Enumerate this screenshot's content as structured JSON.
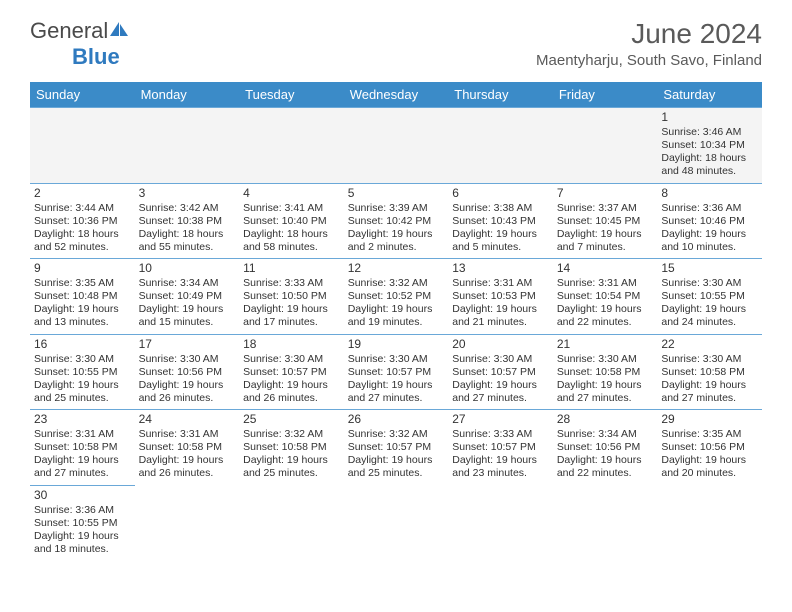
{
  "logo": {
    "word1": "General",
    "word2": "Blue"
  },
  "header": {
    "title": "June 2024",
    "location": "Maentyharju, South Savo, Finland"
  },
  "colors": {
    "header_bg": "#3b8bc8",
    "header_text": "#ffffff",
    "border": "#6aa8d8",
    "text": "#333333",
    "muted_bg": "#f4f4f4",
    "logo_gray": "#4a4a4a",
    "logo_blue": "#2f7abf"
  },
  "typography": {
    "title_fontsize": 28,
    "location_fontsize": 15,
    "dayheader_fontsize": 13,
    "cell_fontsize": 10.5,
    "daynum_fontsize": 12
  },
  "day_headers": [
    "Sunday",
    "Monday",
    "Tuesday",
    "Wednesday",
    "Thursday",
    "Friday",
    "Saturday"
  ],
  "weeks": [
    [
      null,
      null,
      null,
      null,
      null,
      null,
      {
        "n": "1",
        "l1": "Sunrise: 3:46 AM",
        "l2": "Sunset: 10:34 PM",
        "l3": "Daylight: 18 hours",
        "l4": "and 48 minutes."
      }
    ],
    [
      {
        "n": "2",
        "l1": "Sunrise: 3:44 AM",
        "l2": "Sunset: 10:36 PM",
        "l3": "Daylight: 18 hours",
        "l4": "and 52 minutes."
      },
      {
        "n": "3",
        "l1": "Sunrise: 3:42 AM",
        "l2": "Sunset: 10:38 PM",
        "l3": "Daylight: 18 hours",
        "l4": "and 55 minutes."
      },
      {
        "n": "4",
        "l1": "Sunrise: 3:41 AM",
        "l2": "Sunset: 10:40 PM",
        "l3": "Daylight: 18 hours",
        "l4": "and 58 minutes."
      },
      {
        "n": "5",
        "l1": "Sunrise: 3:39 AM",
        "l2": "Sunset: 10:42 PM",
        "l3": "Daylight: 19 hours",
        "l4": "and 2 minutes."
      },
      {
        "n": "6",
        "l1": "Sunrise: 3:38 AM",
        "l2": "Sunset: 10:43 PM",
        "l3": "Daylight: 19 hours",
        "l4": "and 5 minutes."
      },
      {
        "n": "7",
        "l1": "Sunrise: 3:37 AM",
        "l2": "Sunset: 10:45 PM",
        "l3": "Daylight: 19 hours",
        "l4": "and 7 minutes."
      },
      {
        "n": "8",
        "l1": "Sunrise: 3:36 AM",
        "l2": "Sunset: 10:46 PM",
        "l3": "Daylight: 19 hours",
        "l4": "and 10 minutes."
      }
    ],
    [
      {
        "n": "9",
        "l1": "Sunrise: 3:35 AM",
        "l2": "Sunset: 10:48 PM",
        "l3": "Daylight: 19 hours",
        "l4": "and 13 minutes."
      },
      {
        "n": "10",
        "l1": "Sunrise: 3:34 AM",
        "l2": "Sunset: 10:49 PM",
        "l3": "Daylight: 19 hours",
        "l4": "and 15 minutes."
      },
      {
        "n": "11",
        "l1": "Sunrise: 3:33 AM",
        "l2": "Sunset: 10:50 PM",
        "l3": "Daylight: 19 hours",
        "l4": "and 17 minutes."
      },
      {
        "n": "12",
        "l1": "Sunrise: 3:32 AM",
        "l2": "Sunset: 10:52 PM",
        "l3": "Daylight: 19 hours",
        "l4": "and 19 minutes."
      },
      {
        "n": "13",
        "l1": "Sunrise: 3:31 AM",
        "l2": "Sunset: 10:53 PM",
        "l3": "Daylight: 19 hours",
        "l4": "and 21 minutes."
      },
      {
        "n": "14",
        "l1": "Sunrise: 3:31 AM",
        "l2": "Sunset: 10:54 PM",
        "l3": "Daylight: 19 hours",
        "l4": "and 22 minutes."
      },
      {
        "n": "15",
        "l1": "Sunrise: 3:30 AM",
        "l2": "Sunset: 10:55 PM",
        "l3": "Daylight: 19 hours",
        "l4": "and 24 minutes."
      }
    ],
    [
      {
        "n": "16",
        "l1": "Sunrise: 3:30 AM",
        "l2": "Sunset: 10:55 PM",
        "l3": "Daylight: 19 hours",
        "l4": "and 25 minutes."
      },
      {
        "n": "17",
        "l1": "Sunrise: 3:30 AM",
        "l2": "Sunset: 10:56 PM",
        "l3": "Daylight: 19 hours",
        "l4": "and 26 minutes."
      },
      {
        "n": "18",
        "l1": "Sunrise: 3:30 AM",
        "l2": "Sunset: 10:57 PM",
        "l3": "Daylight: 19 hours",
        "l4": "and 26 minutes."
      },
      {
        "n": "19",
        "l1": "Sunrise: 3:30 AM",
        "l2": "Sunset: 10:57 PM",
        "l3": "Daylight: 19 hours",
        "l4": "and 27 minutes."
      },
      {
        "n": "20",
        "l1": "Sunrise: 3:30 AM",
        "l2": "Sunset: 10:57 PM",
        "l3": "Daylight: 19 hours",
        "l4": "and 27 minutes."
      },
      {
        "n": "21",
        "l1": "Sunrise: 3:30 AM",
        "l2": "Sunset: 10:58 PM",
        "l3": "Daylight: 19 hours",
        "l4": "and 27 minutes."
      },
      {
        "n": "22",
        "l1": "Sunrise: 3:30 AM",
        "l2": "Sunset: 10:58 PM",
        "l3": "Daylight: 19 hours",
        "l4": "and 27 minutes."
      }
    ],
    [
      {
        "n": "23",
        "l1": "Sunrise: 3:31 AM",
        "l2": "Sunset: 10:58 PM",
        "l3": "Daylight: 19 hours",
        "l4": "and 27 minutes."
      },
      {
        "n": "24",
        "l1": "Sunrise: 3:31 AM",
        "l2": "Sunset: 10:58 PM",
        "l3": "Daylight: 19 hours",
        "l4": "and 26 minutes."
      },
      {
        "n": "25",
        "l1": "Sunrise: 3:32 AM",
        "l2": "Sunset: 10:58 PM",
        "l3": "Daylight: 19 hours",
        "l4": "and 25 minutes."
      },
      {
        "n": "26",
        "l1": "Sunrise: 3:32 AM",
        "l2": "Sunset: 10:57 PM",
        "l3": "Daylight: 19 hours",
        "l4": "and 25 minutes."
      },
      {
        "n": "27",
        "l1": "Sunrise: 3:33 AM",
        "l2": "Sunset: 10:57 PM",
        "l3": "Daylight: 19 hours",
        "l4": "and 23 minutes."
      },
      {
        "n": "28",
        "l1": "Sunrise: 3:34 AM",
        "l2": "Sunset: 10:56 PM",
        "l3": "Daylight: 19 hours",
        "l4": "and 22 minutes."
      },
      {
        "n": "29",
        "l1": "Sunrise: 3:35 AM",
        "l2": "Sunset: 10:56 PM",
        "l3": "Daylight: 19 hours",
        "l4": "and 20 minutes."
      }
    ],
    [
      {
        "n": "30",
        "l1": "Sunrise: 3:36 AM",
        "l2": "Sunset: 10:55 PM",
        "l3": "Daylight: 19 hours",
        "l4": "and 18 minutes."
      },
      null,
      null,
      null,
      null,
      null,
      null
    ]
  ]
}
